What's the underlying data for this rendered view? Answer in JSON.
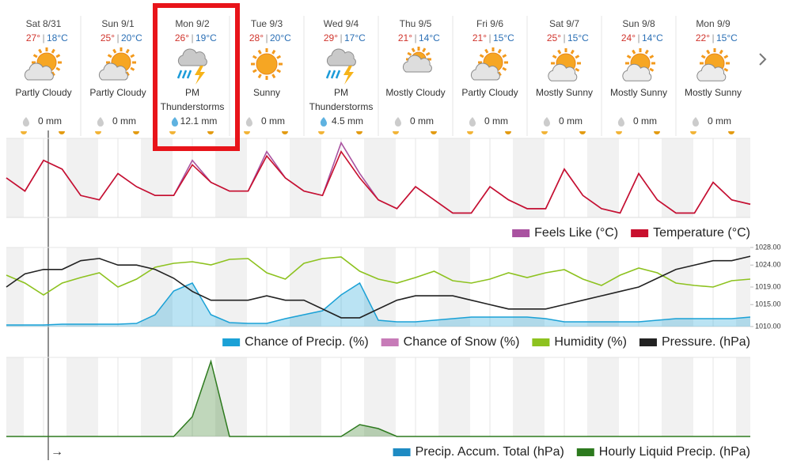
{
  "days": [
    {
      "date": "Sat 8/31",
      "high": "27°",
      "low": "18°C",
      "condition": "Partly Cloudy",
      "precip": "0 mm"
    },
    {
      "date": "Sun 9/1",
      "high": "25°",
      "low": "20°C",
      "condition": "Partly Cloudy",
      "precip": "0 mm"
    },
    {
      "date": "Mon 9/2",
      "high": "26°",
      "low": "19°C",
      "condition": "PM Thunderstorms",
      "precip": "12.1 mm"
    },
    {
      "date": "Tue 9/3",
      "high": "28°",
      "low": "20°C",
      "condition": "Sunny",
      "precip": "0 mm"
    },
    {
      "date": "Wed 9/4",
      "high": "29°",
      "low": "17°C",
      "condition": "PM Thunderstorms",
      "precip": "4.5 mm"
    },
    {
      "date": "Thu 9/5",
      "high": "21°",
      "low": "14°C",
      "condition": "Mostly Cloudy",
      "precip": "0 mm"
    },
    {
      "date": "Fri 9/6",
      "high": "21°",
      "low": "15°C",
      "condition": "Partly Cloudy",
      "precip": "0 mm"
    },
    {
      "date": "Sat 9/7",
      "high": "25°",
      "low": "15°C",
      "condition": "Mostly Sunny",
      "precip": "0 mm"
    },
    {
      "date": "Sun 9/8",
      "high": "24°",
      "low": "14°C",
      "condition": "Mostly Sunny",
      "precip": "0 mm"
    },
    {
      "date": "Mon 9/9",
      "high": "22°",
      "low": "15°C",
      "condition": "Mostly Sunny",
      "precip": "0 mm"
    }
  ],
  "chart_data": [
    {
      "type": "line",
      "ylim": [
        14,
        32
      ],
      "series": [
        {
          "name": "Feels Like (°C)",
          "color": "#a952a0",
          "values": [
            23,
            20,
            27,
            25,
            19,
            18,
            24,
            21,
            19,
            19,
            27,
            22,
            20,
            20,
            29,
            23,
            20,
            19,
            31,
            24,
            18,
            16,
            21,
            18,
            15,
            15,
            21,
            18,
            16,
            16,
            25,
            19,
            16,
            15,
            24,
            18,
            15,
            15,
            22,
            18,
            17
          ]
        },
        {
          "name": "Temperature (°C)",
          "color": "#c8102e",
          "values": [
            23,
            20,
            27,
            25,
            19,
            18,
            24,
            21,
            19,
            19,
            26,
            22,
            20,
            20,
            28,
            23,
            20,
            19,
            29,
            23,
            18,
            16,
            21,
            18,
            15,
            15,
            21,
            18,
            16,
            16,
            25,
            19,
            16,
            15,
            24,
            18,
            15,
            15,
            22,
            18,
            17
          ]
        }
      ]
    },
    {
      "type": "line",
      "ylim": [
        0,
        100
      ],
      "y2lim": [
        1010,
        1028
      ],
      "y2ticks": [
        {
          "value": 1028,
          "label": "1028.00"
        },
        {
          "value": 1024,
          "label": "1024.00"
        },
        {
          "value": 1019,
          "label": "1019.00"
        },
        {
          "value": 1015,
          "label": "1015.00"
        },
        {
          "value": 1010,
          "label": "1010.00"
        }
      ],
      "series": [
        {
          "name": "Chance of Precip. (%)",
          "color": "#1ba1d6",
          "area": true,
          "values": [
            2,
            2,
            2,
            3,
            3,
            3,
            3,
            4,
            15,
            45,
            55,
            15,
            5,
            4,
            4,
            10,
            15,
            20,
            40,
            55,
            8,
            6,
            6,
            8,
            10,
            12,
            12,
            12,
            12,
            10,
            6,
            6,
            6,
            6,
            6,
            8,
            10,
            10,
            10,
            10,
            12
          ]
        },
        {
          "name": "Chance of Snow (%)",
          "color": "#c77bb8"
        },
        {
          "name": "Humidity (%)",
          "color": "#8dc21f",
          "values": [
            65,
            55,
            40,
            55,
            62,
            68,
            50,
            60,
            75,
            80,
            82,
            78,
            85,
            86,
            68,
            60,
            80,
            86,
            88,
            70,
            60,
            55,
            62,
            70,
            58,
            55,
            60,
            68,
            62,
            68,
            72,
            60,
            52,
            65,
            74,
            68,
            55,
            52,
            50,
            58,
            60
          ]
        },
        {
          "name": "Pressure. (hPa)",
          "color": "#222222",
          "axis": "y2",
          "values": [
            1019,
            1022,
            1023,
            1023,
            1025,
            1025.5,
            1024,
            1024,
            1023,
            1021,
            1018,
            1016,
            1016,
            1016,
            1017,
            1016,
            1016,
            1014,
            1012,
            1012,
            1014,
            1016,
            1017,
            1017,
            1017,
            1016,
            1015,
            1014,
            1014,
            1014,
            1015,
            1016,
            1017,
            1018,
            1019,
            1021,
            1023,
            1024,
            1025,
            1025,
            1026
          ]
        }
      ]
    },
    {
      "type": "line",
      "ylim": [
        0,
        4
      ],
      "series": [
        {
          "name": "Precip. Accum. Total (hPa)",
          "color": "#1e8bc3"
        },
        {
          "name": "Hourly Liquid Precip. (hPa)",
          "color": "#2d7a1e",
          "area": true,
          "values": [
            0,
            0,
            0,
            0,
            0,
            0,
            0,
            0,
            0,
            0,
            1,
            3.8,
            0,
            0,
            0,
            0,
            0,
            0,
            0,
            0.6,
            0.4,
            0,
            0,
            0,
            0,
            0,
            0,
            0,
            0,
            0,
            0,
            0,
            0,
            0,
            0,
            0,
            0,
            0,
            0,
            0,
            0
          ]
        }
      ]
    }
  ]
}
